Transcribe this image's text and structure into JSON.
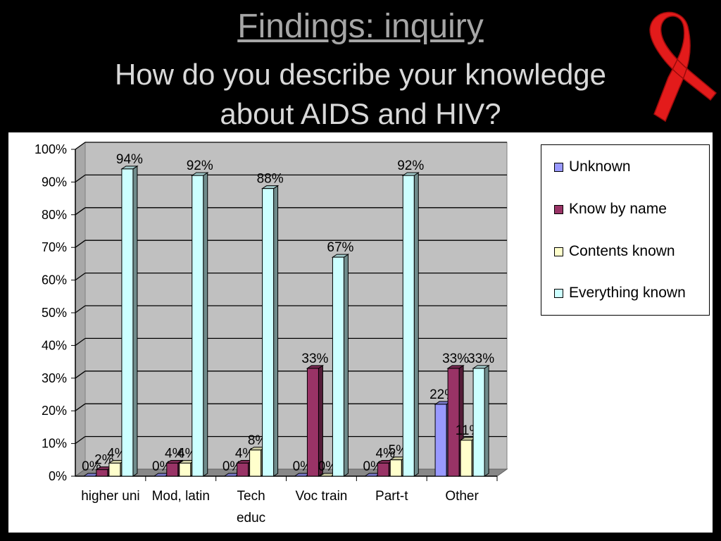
{
  "slide": {
    "title": "Findings: inquiry",
    "subtitle_line1": "How do you describe your knowledge",
    "subtitle_line2": "about AIDS and HIV?"
  },
  "colors": {
    "Unknown": "#9999ff",
    "Know by name": "#993366",
    "Contents known": "#ffffcc",
    "Everything known": "#ccffff",
    "plot_background": "#c0c0c0",
    "ribbon": "#e31b1b"
  },
  "chart_data": {
    "type": "bar",
    "style": "3d-clustered-column",
    "categories": [
      [
        "higher uni"
      ],
      [
        "Mod, latin"
      ],
      [
        "Tech",
        "educ"
      ],
      [
        "Voc train"
      ],
      [
        "Part-t"
      ],
      [
        "Other"
      ]
    ],
    "series": [
      {
        "name": "Unknown",
        "values": [
          0,
          0,
          0,
          0,
          0,
          22
        ],
        "labels": [
          "0%",
          "0%",
          "0%",
          "0%",
          "0%",
          "22%"
        ]
      },
      {
        "name": "Know by name",
        "values": [
          2,
          4,
          4,
          33,
          4,
          33
        ],
        "labels": [
          "2%",
          "4%",
          "4%",
          "33%",
          "4%",
          "33%"
        ]
      },
      {
        "name": "Contents known",
        "values": [
          4,
          4,
          8,
          0,
          5,
          11
        ],
        "labels": [
          "4%",
          "4%",
          "8%",
          "0%",
          "5%",
          "11%"
        ]
      },
      {
        "name": "Everything known",
        "values": [
          94,
          92,
          88,
          67,
          92,
          33
        ],
        "labels": [
          "94%",
          "92%",
          "88%",
          "67%",
          "92%",
          "33%"
        ]
      }
    ],
    "y_ticks": [
      "0%",
      "10%",
      "20%",
      "30%",
      "40%",
      "50%",
      "60%",
      "70%",
      "80%",
      "90%",
      "100%"
    ],
    "ylim": [
      0,
      100
    ],
    "grid": true,
    "legend_position": "right"
  }
}
